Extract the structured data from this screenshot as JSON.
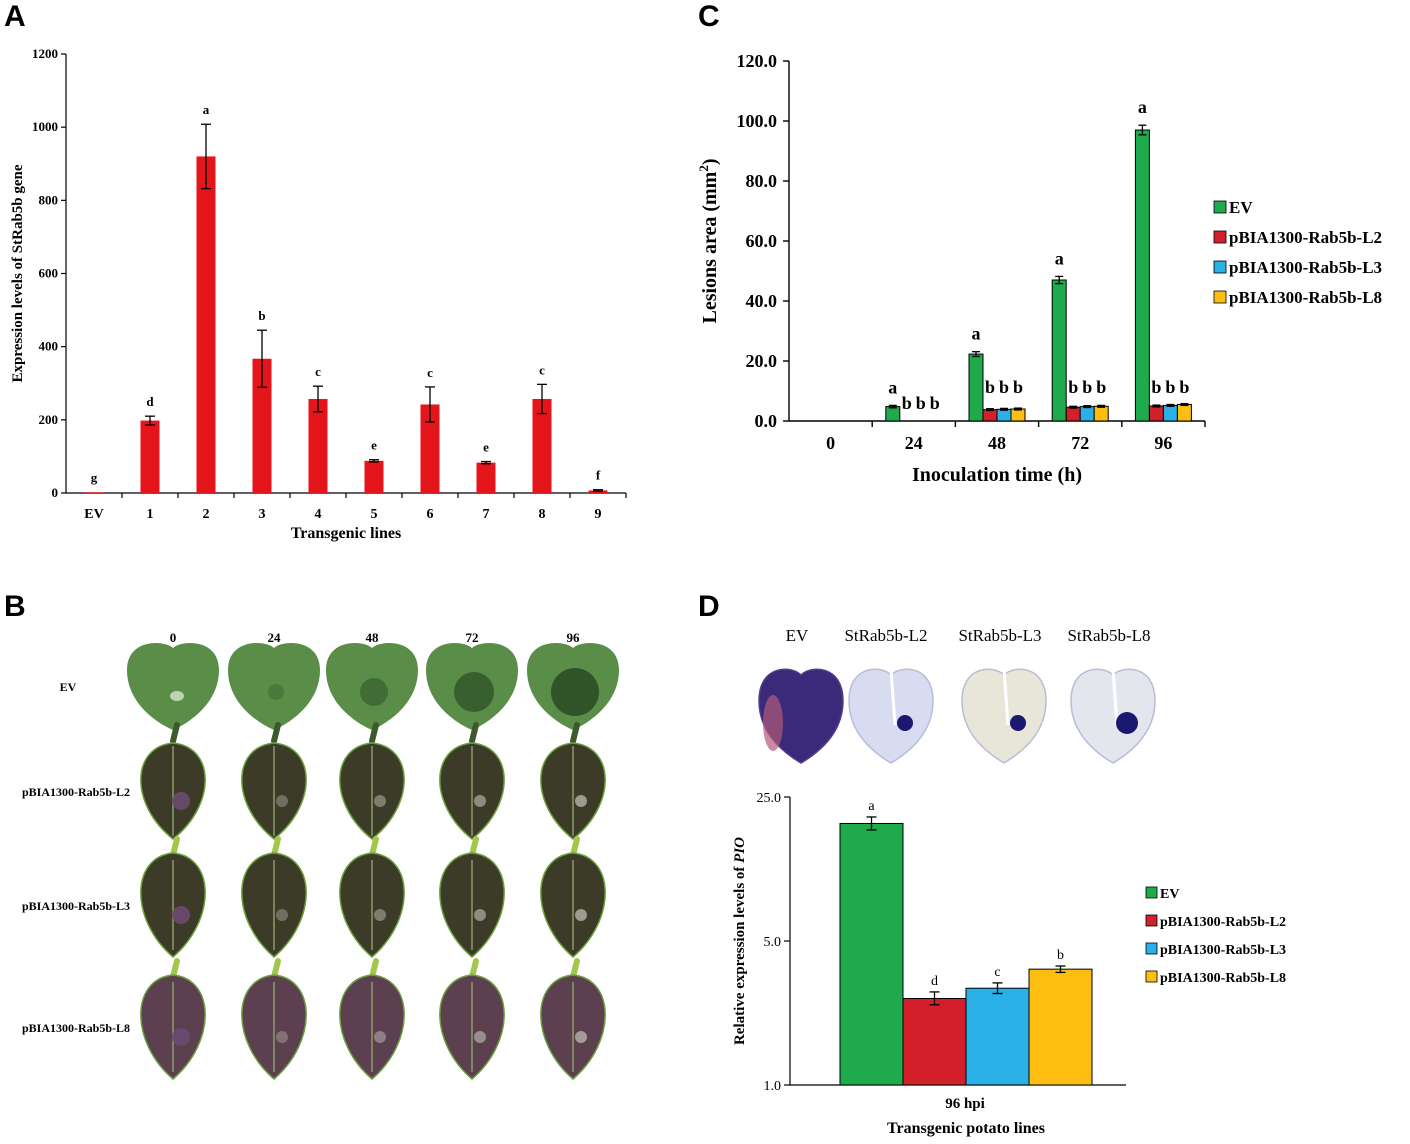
{
  "panels": {
    "a": "A",
    "b": "B",
    "c": "C",
    "d": "D"
  },
  "colors": {
    "red": "#e4161b",
    "ev_green": "#1faa4d",
    "l2_red": "#d21f2a",
    "l3_blue": "#2ab0e6",
    "l8_yellow": "#fdbd11",
    "leaf_ev": "#5a8e48",
    "leaf_dark": "#3c3b28",
    "leaf_purple": "#5c4050",
    "stain_blue": "#1a1870"
  },
  "chart_data": [
    {
      "id": "A",
      "type": "bar",
      "categories": [
        "EV",
        "1",
        "2",
        "3",
        "4",
        "5",
        "6",
        "7",
        "8",
        "9"
      ],
      "values": [
        2,
        198,
        920,
        367,
        257,
        88,
        242,
        83,
        257,
        7
      ],
      "errors": [
        1,
        12,
        88,
        78,
        35,
        3,
        48,
        3,
        40,
        2
      ],
      "letters": [
        "g",
        "d",
        "a",
        "b",
        "c",
        "e",
        "c",
        "e",
        "c",
        "f"
      ],
      "xlabel": "Transgenic lines",
      "ylabel": "Expression levels of StRab5b gene",
      "yticks": [
        "0",
        "200",
        "400",
        "600",
        "800",
        "1000",
        "1200"
      ],
      "ylim": [
        0,
        1200
      ]
    },
    {
      "id": "C",
      "type": "bar",
      "categories": [
        "0",
        "24",
        "48",
        "72",
        "96"
      ],
      "series": [
        {
          "name": "EV",
          "values": [
            0,
            4.8,
            22.3,
            47.0,
            97.0
          ],
          "errors": [
            0,
            0.4,
            0.8,
            1.2,
            1.6
          ],
          "letters": [
            "",
            "a",
            "a",
            "a",
            "a"
          ]
        },
        {
          "name": "pBIA1300-Rab5b-L2",
          "values": [
            0,
            0,
            3.8,
            4.6,
            5.0
          ],
          "errors": [
            0,
            0,
            0.3,
            0.3,
            0.3
          ],
          "letters": [
            "",
            "b",
            "b",
            "b",
            "b"
          ]
        },
        {
          "name": "pBIA1300-Rab5b-L3",
          "values": [
            0,
            0,
            3.9,
            4.8,
            5.2
          ],
          "errors": [
            0,
            0,
            0.3,
            0.3,
            0.3
          ],
          "letters": [
            "",
            "b",
            "b",
            "b",
            "b"
          ]
        },
        {
          "name": "pBIA1300-Rab5b-L8",
          "values": [
            0,
            0,
            4.0,
            4.9,
            5.5
          ],
          "errors": [
            0,
            0,
            0.3,
            0.3,
            0.3
          ],
          "letters": [
            "",
            "b",
            "b",
            "b",
            "b"
          ]
        }
      ],
      "xlabel": "Inoculation time (h)",
      "ylabel_main": "Lesions area (mm",
      "ylabel_sup": "2",
      "ylabel_end": ")",
      "yticks": [
        "0.0",
        "20.0",
        "40.0",
        "60.0",
        "80.0",
        "100.0",
        "120.0"
      ],
      "ylim": [
        0,
        120
      ]
    },
    {
      "id": "D",
      "type": "bar",
      "scale": "log",
      "categories": [
        "96 hpi"
      ],
      "series": [
        {
          "name": "EV",
          "value": 18.6,
          "err_hi": 20.0,
          "err_lo": 17.3,
          "letter": "a"
        },
        {
          "name": "pBIA1300-Rab5b-L2",
          "value": 2.63,
          "err_hi": 2.83,
          "err_lo": 2.45,
          "letter": "d"
        },
        {
          "name": "pBIA1300-Rab5b-L3",
          "value": 2.95,
          "err_hi": 3.13,
          "err_lo": 2.78,
          "letter": "c"
        },
        {
          "name": "pBIA1300-Rab5b-L8",
          "value": 3.65,
          "err_hi": 3.78,
          "err_lo": 3.52,
          "letter": "b"
        }
      ],
      "xlabel": "Transgenic potato lines",
      "ylabel_main": "Relative expression levels of ",
      "ylabel_italic": "PIO",
      "yticks": [
        "1.0",
        "5.0",
        "25.0"
      ],
      "ylim": [
        1,
        25
      ]
    }
  ],
  "panel_b": {
    "columns": [
      "0",
      "24",
      "48",
      "72",
      "96"
    ],
    "rows": [
      "EV",
      "pBIA1300-Rab5b-L2",
      "pBIA1300-Rab5b-L3",
      "pBIA1300-Rab5b-L8"
    ]
  },
  "panel_d_photos": {
    "labels": [
      "EV",
      "StRab5b-L2",
      "StRab5b-L3",
      "StRab5b-L8"
    ]
  }
}
